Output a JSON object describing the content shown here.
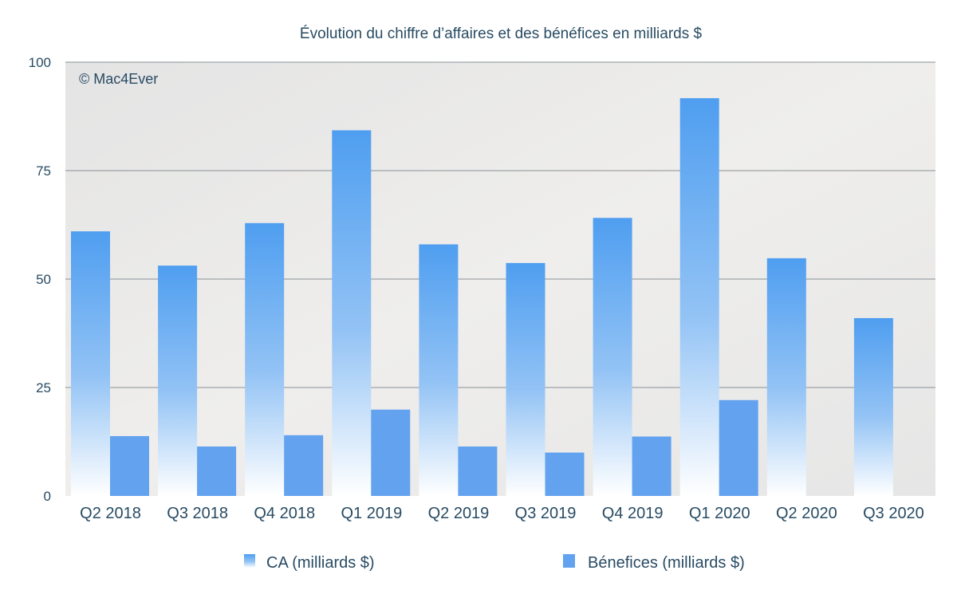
{
  "chart_data": {
    "type": "bar",
    "title": "Évolution du chiffre d’affaires et des bénéfices en milliards $",
    "watermark": "© Mac4Ever",
    "categories": [
      "Q2 2018",
      "Q3 2018",
      "Q4 2018",
      "Q1 2019",
      "Q2 2019",
      "Q3 2019",
      "Q4  2019",
      "Q1 2020",
      "Q2 2020",
      "Q3 2020"
    ],
    "series": [
      {
        "name": "CA (milliards $)",
        "values": [
          61.0,
          53.1,
          62.9,
          84.3,
          58.0,
          53.7,
          64.1,
          91.7,
          54.8,
          41.0
        ],
        "color": "#4f9ef0",
        "style": "gradient"
      },
      {
        "name": "Bénefices (milliards $)",
        "values": [
          13.8,
          11.4,
          14.0,
          19.9,
          11.4,
          10.0,
          13.7,
          22.1,
          null,
          null
        ],
        "color": "#62a2ef",
        "style": "solid"
      }
    ],
    "ylim": [
      0,
      100
    ],
    "yticks": [
      "0",
      "25",
      "50",
      "75",
      "100"
    ],
    "grid": true,
    "legend_position": "bottom",
    "xlabel": "",
    "ylabel": ""
  }
}
